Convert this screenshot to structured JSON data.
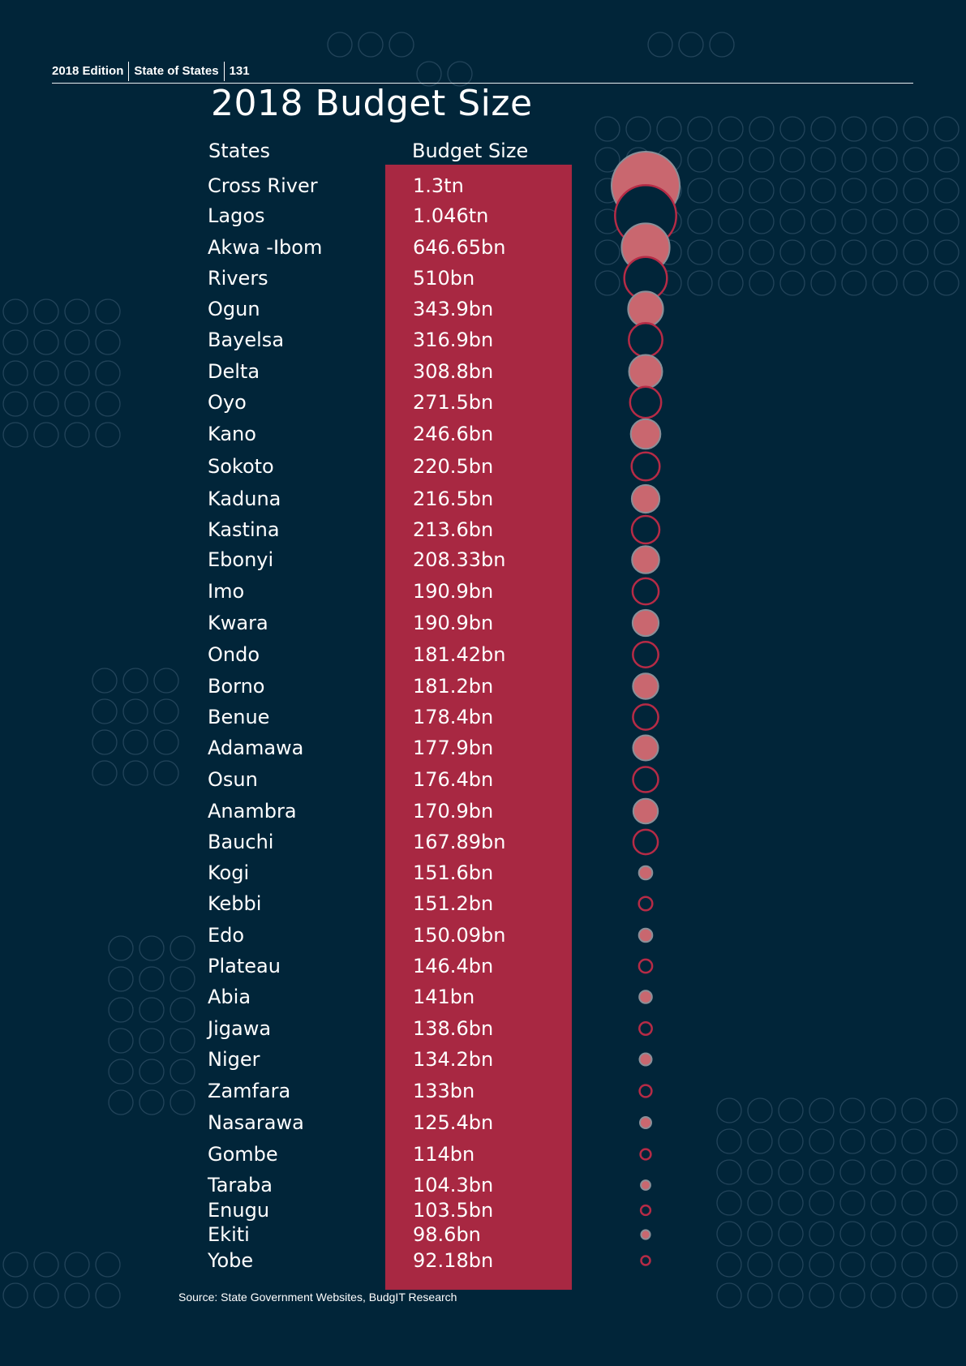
{
  "header": {
    "edition": "2018 Edition",
    "publication": "State of States",
    "page_number": "131"
  },
  "colors": {
    "background": "#012539",
    "panel": "#a82842",
    "bubble_fill": "#c9676f",
    "bubble_outline": "#b62b46",
    "pattern": "#23445a"
  },
  "chart_data": {
    "type": "table",
    "title": "2018 Budget Size",
    "columns": [
      "States",
      "Budget Size"
    ],
    "rows": [
      {
        "state": "Cross River",
        "budget": "1.3tn",
        "value_bn": 1300
      },
      {
        "state": "Lagos",
        "budget": "1.046tn",
        "value_bn": 1046
      },
      {
        "state": "Akwa -Ibom",
        "budget": "646.65bn",
        "value_bn": 646.65
      },
      {
        "state": "Rivers",
        "budget": "510bn",
        "value_bn": 510
      },
      {
        "state": "Ogun",
        "budget": "343.9bn",
        "value_bn": 343.9
      },
      {
        "state": "Bayelsa",
        "budget": "316.9bn",
        "value_bn": 316.9
      },
      {
        "state": "Delta",
        "budget": "308.8bn",
        "value_bn": 308.8
      },
      {
        "state": "Oyo",
        "budget": "271.5bn",
        "value_bn": 271.5
      },
      {
        "state": "Kano",
        "budget": "246.6bn",
        "value_bn": 246.6
      },
      {
        "state": "Sokoto",
        "budget": "220.5bn",
        "value_bn": 220.5
      },
      {
        "state": "Kaduna",
        "budget": "216.5bn",
        "value_bn": 216.5
      },
      {
        "state": "Kastina",
        "budget": "213.6bn",
        "value_bn": 213.6
      },
      {
        "state": "Ebonyi",
        "budget": "208.33bn",
        "value_bn": 208.33
      },
      {
        "state": "Imo",
        "budget": "190.9bn",
        "value_bn": 190.9
      },
      {
        "state": "Kwara",
        "budget": "190.9bn",
        "value_bn": 190.9
      },
      {
        "state": "Ondo",
        "budget": "181.42bn",
        "value_bn": 181.42
      },
      {
        "state": "Borno",
        "budget": "181.2bn",
        "value_bn": 181.2
      },
      {
        "state": "Benue",
        "budget": "178.4bn",
        "value_bn": 178.4
      },
      {
        "state": "Adamawa",
        "budget": "177.9bn",
        "value_bn": 177.9
      },
      {
        "state": "Osun",
        "budget": "176.4bn",
        "value_bn": 176.4
      },
      {
        "state": "Anambra",
        "budget": "170.9bn",
        "value_bn": 170.9
      },
      {
        "state": "Bauchi",
        "budget": "167.89bn",
        "value_bn": 167.89
      },
      {
        "state": "Kogi",
        "budget": "151.6bn",
        "value_bn": 151.6
      },
      {
        "state": "Kebbi",
        "budget": "151.2bn",
        "value_bn": 151.2
      },
      {
        "state": "Edo",
        "budget": "150.09bn",
        "value_bn": 150.09
      },
      {
        "state": "Plateau",
        "budget": "146.4bn",
        "value_bn": 146.4
      },
      {
        "state": "Abia",
        "budget": "141bn",
        "value_bn": 141
      },
      {
        "state": "Jigawa",
        "budget": "138.6bn",
        "value_bn": 138.6
      },
      {
        "state": "Niger",
        "budget": "134.2bn",
        "value_bn": 134.2
      },
      {
        "state": "Zamfara",
        "budget": "133bn",
        "value_bn": 133
      },
      {
        "state": "Nasarawa",
        "budget": "125.4bn",
        "value_bn": 125.4
      },
      {
        "state": "Gombe",
        "budget": "114bn",
        "value_bn": 114
      },
      {
        "state": "Taraba",
        "budget": "104.3bn",
        "value_bn": 104.3
      },
      {
        "state": "Enugu",
        "budget": "103.5bn",
        "value_bn": 103.5
      },
      {
        "state": "Ekiti",
        "budget": "98.6bn",
        "value_bn": 98.6
      },
      {
        "state": "Yobe",
        "budget": "92.18bn",
        "value_bn": 92.18
      }
    ],
    "bubble_style": "alternating filled and outlined circles"
  },
  "source": "Source: State Government Websites, BudgIT Research"
}
